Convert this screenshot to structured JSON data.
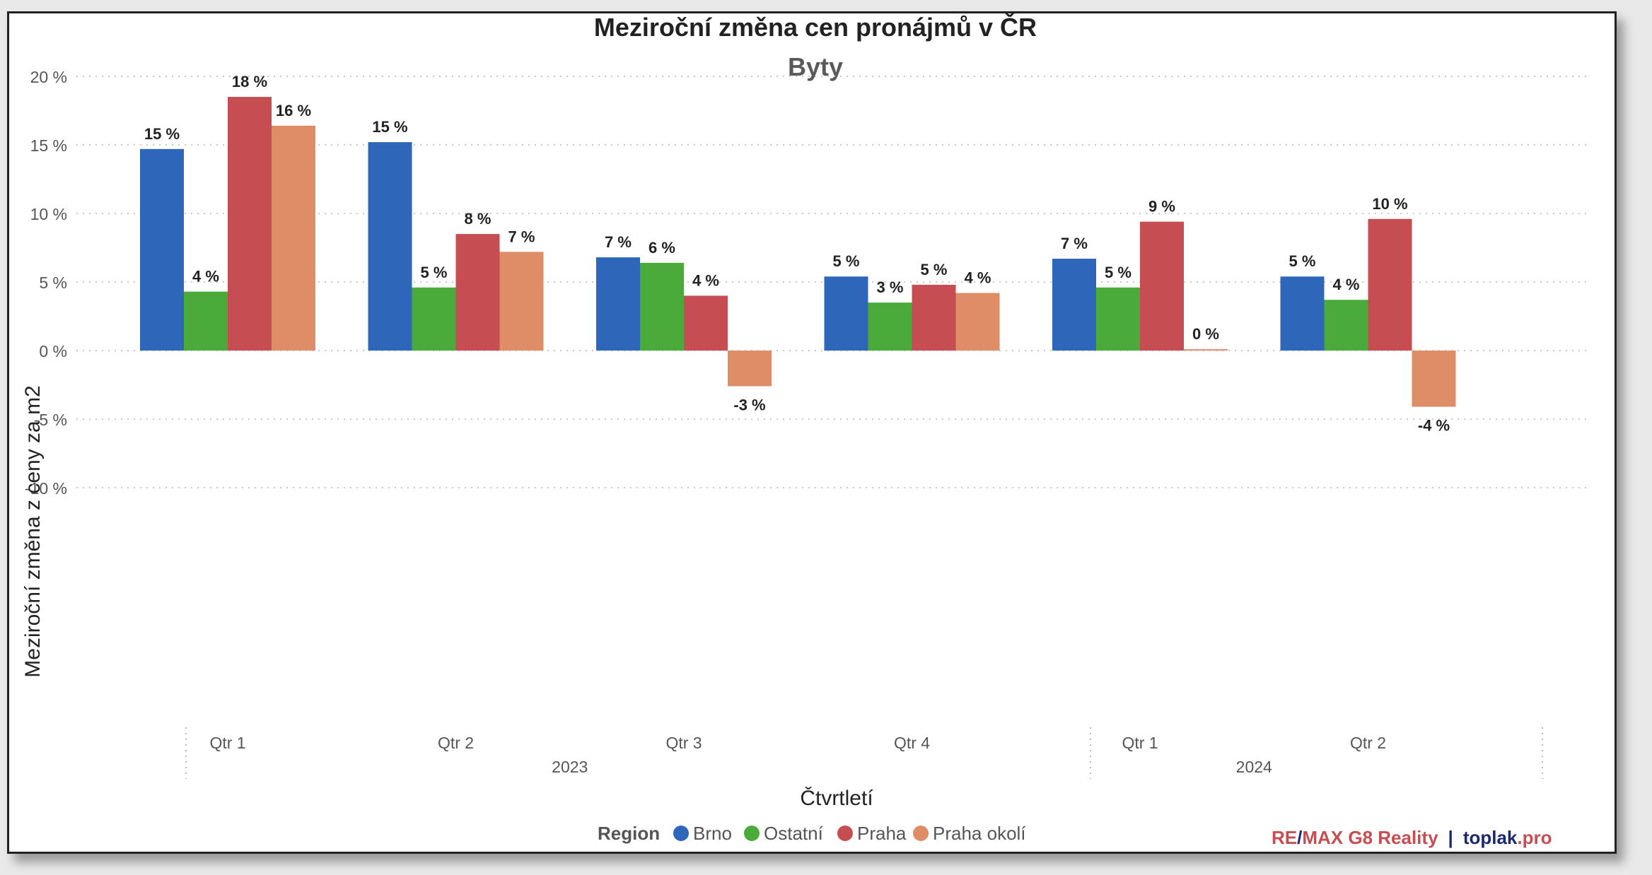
{
  "chart_data": {
    "type": "bar",
    "title": "Meziroční změna cen pronájmů v ČR",
    "subtitle": "Byty",
    "ylabel": "Meziroční změna z ceny za m2",
    "xlabel": "Čtvrtletí",
    "ylim": [
      -10,
      20
    ],
    "yticks": [
      "20 %",
      "15 %",
      "10 %",
      "5 %",
      "0 %",
      "-5 %",
      "-10 %"
    ],
    "ytick_values": [
      20,
      15,
      10,
      5,
      0,
      -5,
      -10
    ],
    "categories": [
      "Qtr 1",
      "Qtr 2",
      "Qtr 3",
      "Qtr 4",
      "Qtr 1",
      "Qtr 2"
    ],
    "year_groups": [
      {
        "label": "2023",
        "count": 4
      },
      {
        "label": "2024",
        "count": 2
      }
    ],
    "series": [
      {
        "name": "Brno",
        "color": "#2e67ba",
        "values": [
          14.7,
          15.2,
          6.8,
          5.4,
          6.7,
          5.4
        ],
        "labels": [
          "15 %",
          "15 %",
          "7 %",
          "5 %",
          "7 %",
          "5 %"
        ]
      },
      {
        "name": "Ostatní",
        "color": "#4aab3a",
        "values": [
          4.3,
          4.6,
          6.4,
          3.5,
          4.6,
          3.7
        ],
        "labels": [
          "4 %",
          "5 %",
          "6 %",
          "3 %",
          "5 %",
          "4 %"
        ]
      },
      {
        "name": "Praha",
        "color": "#c64d52",
        "values": [
          18.5,
          8.5,
          4.0,
          4.8,
          9.4,
          9.6
        ],
        "labels": [
          "18 %",
          "8 %",
          "4 %",
          "5 %",
          "9 %",
          "10 %"
        ]
      },
      {
        "name": "Praha okolí",
        "color": "#df8d67",
        "values": [
          16.4,
          7.2,
          -2.6,
          4.2,
          0.1,
          -4.1
        ],
        "labels": [
          "16 %",
          "7 %",
          "-3 %",
          "4 %",
          "0 %",
          "-4 %"
        ]
      }
    ],
    "grid": true,
    "legend_position": "bottom",
    "legend_title": "Region"
  },
  "branding": {
    "remax_re": "RE",
    "remax_slash": "/",
    "remax_rest": "MAX G8 Reality",
    "separator": "|",
    "toplak_main": "toplak",
    "toplak_tld": ".pro",
    "color_red": "#c64d52",
    "color_navy": "#1b2a6e"
  }
}
